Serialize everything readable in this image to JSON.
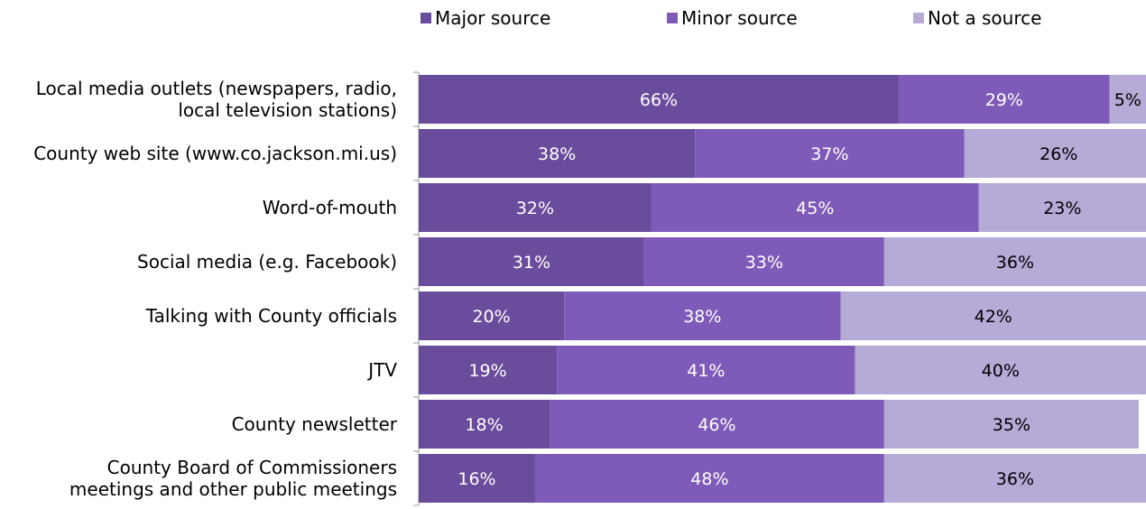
{
  "chart_data": {
    "type": "bar",
    "orientation": "horizontal",
    "stacked": true,
    "categories": [
      [
        "Local media outlets (newspapers, radio,",
        "local television stations)"
      ],
      [
        "County web site (www.co.jackson.mi.us)"
      ],
      [
        "Word-of-mouth"
      ],
      [
        "Social media (e.g. Facebook)"
      ],
      [
        "Talking with County officials"
      ],
      [
        "JTV"
      ],
      [
        "County newsletter"
      ],
      [
        "County Board of Commissioners",
        "meetings and other public meetings"
      ]
    ],
    "series": [
      {
        "name": "Major source",
        "color": "#6a4c9c",
        "values": [
          66,
          38,
          32,
          31,
          20,
          19,
          18,
          16
        ]
      },
      {
        "name": "Minor source",
        "color": "#7e5bb8",
        "values": [
          29,
          37,
          45,
          33,
          38,
          41,
          46,
          48
        ]
      },
      {
        "name": "Not a source",
        "color": "#b6aad6",
        "values": [
          5,
          26,
          23,
          36,
          42,
          40,
          35,
          36
        ]
      }
    ],
    "data_labels": [
      [
        "66%",
        "29%",
        "5%"
      ],
      [
        "38%",
        "37%",
        "26%"
      ],
      [
        "32%",
        "45%",
        "23%"
      ],
      [
        "31%",
        "33%",
        "36%"
      ],
      [
        "20%",
        "38%",
        "42%"
      ],
      [
        "19%",
        "41%",
        "40%"
      ],
      [
        "18%",
        "46%",
        "35%"
      ],
      [
        "16%",
        "48%",
        "36%"
      ]
    ],
    "xlim": [
      0,
      100
    ],
    "grid": false,
    "legend_position": "top"
  }
}
